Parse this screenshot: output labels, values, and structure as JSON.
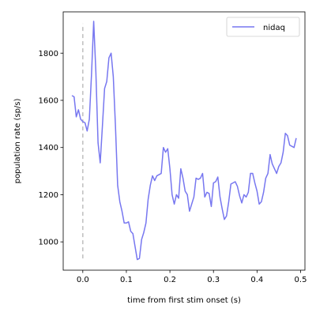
{
  "chart_data": {
    "type": "line",
    "xlabel": "time from first stim onset (s)",
    "ylabel": "population rate (sp/s)",
    "xlim": [
      -0.045,
      0.51
    ],
    "ylim": [
      880,
      1975
    ],
    "xticks": [
      0.0,
      0.1,
      0.2,
      0.3,
      0.4,
      0.5
    ],
    "xtick_labels": [
      "0.0",
      "0.1",
      "0.2",
      "0.3",
      "0.4",
      "0.5"
    ],
    "yticks": [
      1000,
      1200,
      1400,
      1600,
      1800
    ],
    "ytick_labels": [
      "1000",
      "1200",
      "1400",
      "1600",
      "1800"
    ],
    "grid": false,
    "legend_position": "top-right",
    "vline": {
      "x": 0.0,
      "y_range": [
        930,
        1925
      ],
      "color": "#bfbfbf",
      "style": "dashed"
    },
    "series": [
      {
        "name": "nidaq",
        "color": "#7777f0",
        "x": [
          -0.025,
          -0.02,
          -0.015,
          -0.01,
          -0.005,
          0.0,
          0.005,
          0.01,
          0.015,
          0.02,
          0.025,
          0.03,
          0.035,
          0.04,
          0.045,
          0.05,
          0.055,
          0.06,
          0.065,
          0.07,
          0.075,
          0.08,
          0.085,
          0.09,
          0.095,
          0.1,
          0.105,
          0.11,
          0.115,
          0.12,
          0.125,
          0.13,
          0.135,
          0.14,
          0.145,
          0.15,
          0.155,
          0.16,
          0.165,
          0.17,
          0.175,
          0.18,
          0.185,
          0.19,
          0.195,
          0.2,
          0.205,
          0.21,
          0.215,
          0.22,
          0.225,
          0.23,
          0.235,
          0.24,
          0.245,
          0.25,
          0.255,
          0.26,
          0.265,
          0.27,
          0.275,
          0.28,
          0.285,
          0.29,
          0.295,
          0.3,
          0.305,
          0.31,
          0.315,
          0.32,
          0.325,
          0.33,
          0.335,
          0.34,
          0.345,
          0.35,
          0.355,
          0.36,
          0.365,
          0.37,
          0.375,
          0.38,
          0.385,
          0.39,
          0.395,
          0.4,
          0.405,
          0.41,
          0.415,
          0.42,
          0.425,
          0.43,
          0.435,
          0.44,
          0.445,
          0.45,
          0.455,
          0.46,
          0.465,
          0.47,
          0.475,
          0.48,
          0.485,
          0.49
        ],
        "values": [
          1620,
          1615,
          1530,
          1560,
          1520,
          1510,
          1505,
          1470,
          1520,
          1710,
          1935,
          1720,
          1420,
          1335,
          1490,
          1650,
          1680,
          1780,
          1800,
          1700,
          1490,
          1240,
          1170,
          1130,
          1080,
          1080,
          1085,
          1045,
          1035,
          980,
          925,
          930,
          1010,
          1040,
          1080,
          1180,
          1240,
          1280,
          1260,
          1280,
          1285,
          1290,
          1400,
          1380,
          1395,
          1310,
          1200,
          1160,
          1200,
          1185,
          1310,
          1270,
          1215,
          1200,
          1130,
          1160,
          1190,
          1270,
          1265,
          1270,
          1290,
          1190,
          1210,
          1205,
          1150,
          1250,
          1255,
          1275,
          1190,
          1140,
          1095,
          1110,
          1170,
          1245,
          1250,
          1255,
          1235,
          1195,
          1165,
          1200,
          1190,
          1210,
          1290,
          1290,
          1250,
          1215,
          1160,
          1170,
          1210,
          1270,
          1290,
          1370,
          1330,
          1310,
          1290,
          1320,
          1335,
          1380,
          1460,
          1450,
          1410,
          1405,
          1400,
          1440
        ]
      }
    ]
  }
}
